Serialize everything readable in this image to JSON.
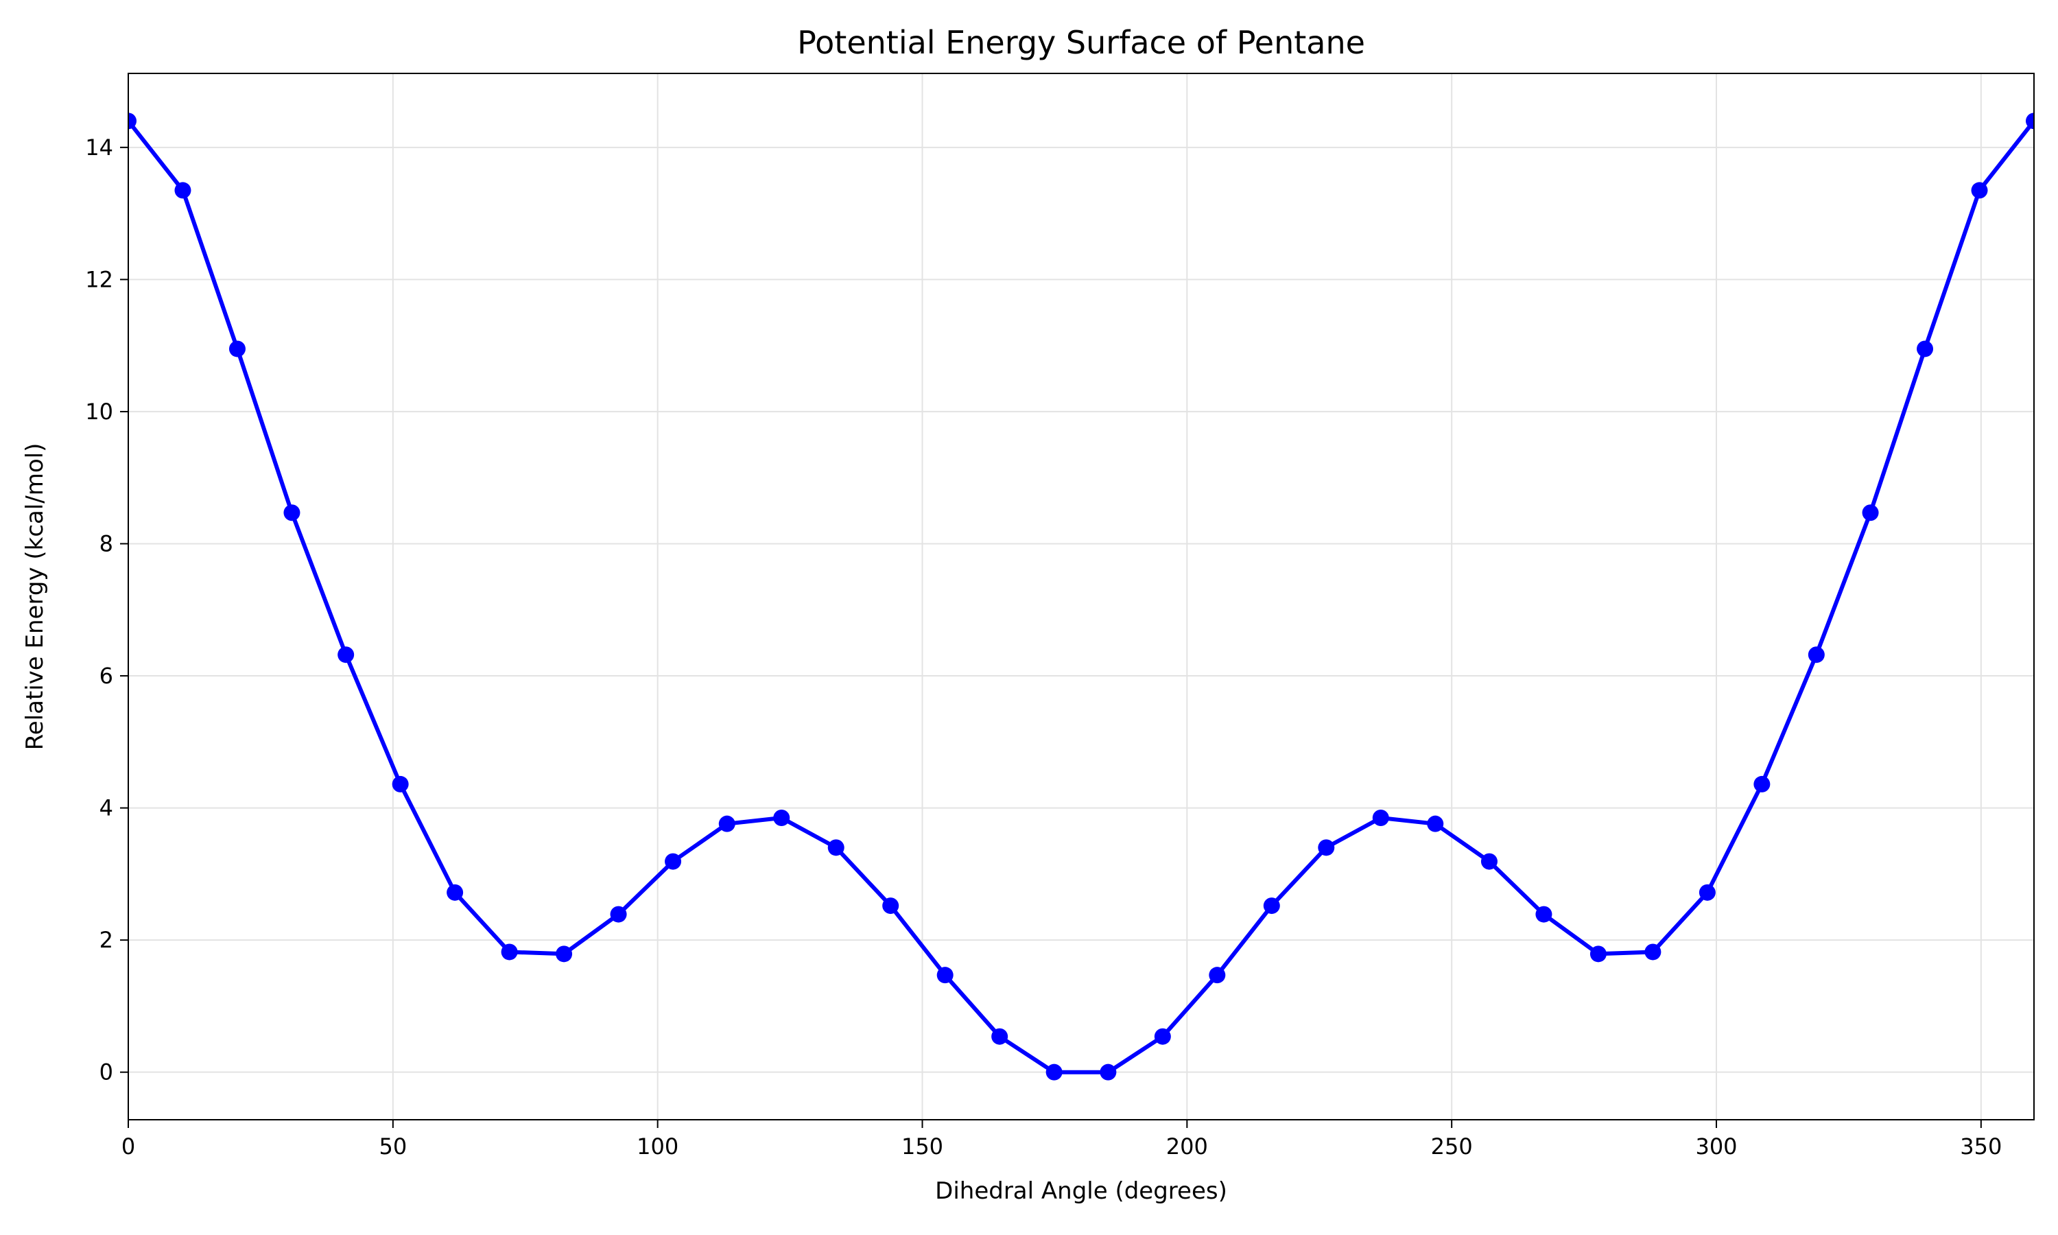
{
  "chart_data": {
    "type": "line",
    "title": "Potential Energy Surface of Pentane",
    "xlabel": "Dihedral Angle (degrees)",
    "ylabel": "Relative Energy (kcal/mol)",
    "xlim": [
      0,
      360
    ],
    "ylim": [
      -0.72,
      15.12
    ],
    "xticks": [
      0,
      50,
      100,
      150,
      200,
      250,
      300,
      350
    ],
    "yticks": [
      0,
      2,
      4,
      6,
      8,
      10,
      12,
      14
    ],
    "grid": true,
    "legend": "none",
    "series_color": "#0000ff",
    "series": [
      {
        "x": [
          0,
          10.3,
          20.6,
          30.9,
          41.1,
          51.4,
          61.7,
          72.0,
          82.3,
          92.6,
          102.9,
          113.1,
          123.4,
          133.7,
          144.0,
          154.3,
          164.6,
          174.9,
          185.1,
          195.4,
          205.7,
          216.0,
          226.3,
          236.6,
          246.9,
          257.1,
          267.4,
          277.7,
          288.0,
          298.3,
          308.6,
          318.9,
          329.1,
          339.4,
          349.7,
          360
        ],
        "values": [
          14.4,
          13.35,
          10.95,
          8.47,
          6.32,
          4.36,
          2.72,
          1.82,
          1.79,
          2.39,
          3.19,
          3.76,
          3.85,
          3.4,
          2.52,
          1.47,
          0.54,
          0.0,
          0.0,
          0.54,
          1.47,
          2.52,
          3.4,
          3.85,
          3.76,
          3.19,
          2.39,
          1.79,
          1.82,
          2.72,
          4.36,
          6.32,
          8.47,
          10.95,
          13.35,
          14.4
        ]
      }
    ]
  }
}
